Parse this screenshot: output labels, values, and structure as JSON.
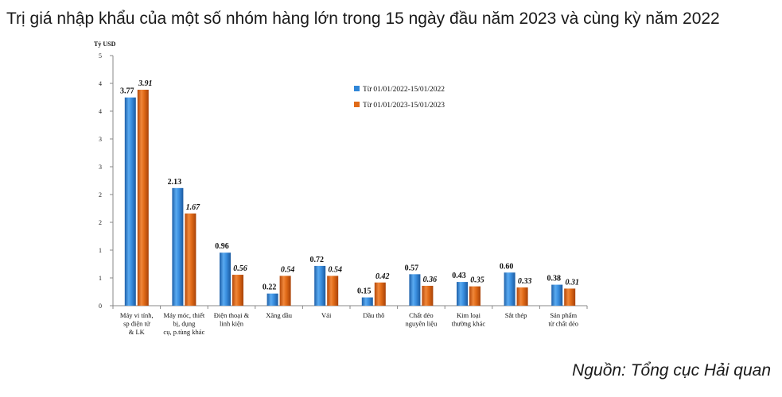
{
  "title": "Trị giá nhập khẩu của một số nhóm hàng lớn trong 15 ngày đầu năm 2023 và cùng kỳ năm 2022",
  "source": "Nguồn: Tổng cục Hải quan",
  "chart_data": {
    "type": "bar",
    "ylabel": "Tỷ USD",
    "ylim": [
      0,
      4.5
    ],
    "y_tick_labels": [
      "0",
      "1",
      "1",
      "2",
      "2",
      "3",
      "3",
      "4",
      "4",
      "5"
    ],
    "legend_position": "top-right",
    "categories": [
      [
        "Máy vi tính,",
        "sp điện tử",
        "& LK"
      ],
      [
        "Máy móc, thiết",
        "bị, dụng",
        "cụ, p.tùng khác"
      ],
      [
        "Điện thoại &",
        "linh kiện"
      ],
      [
        "Xăng dầu"
      ],
      [
        "Vải"
      ],
      [
        "Dầu thô"
      ],
      [
        "Chất dẻo",
        "nguyên liệu"
      ],
      [
        "Kim loại",
        "thường khác"
      ],
      [
        "Sắt thép"
      ],
      [
        "Sản phẩm",
        "từ chất dẻo"
      ]
    ],
    "series": [
      {
        "name": "Từ 01/01/2022-15/01/2022",
        "color": "#2f86d8",
        "values": [
          3.77,
          2.13,
          0.96,
          0.22,
          0.72,
          0.15,
          0.57,
          0.43,
          0.6,
          0.38
        ],
        "labels": [
          "3.77",
          "2.13",
          "0.96",
          "0.22",
          "0.72",
          "0.15",
          "0.57",
          "0.43",
          "0.60",
          "0.38"
        ]
      },
      {
        "name": "Từ 01/01/2023-15/01/2023",
        "color": "#e06a17",
        "values": [
          3.91,
          1.67,
          0.56,
          0.54,
          0.54,
          0.42,
          0.36,
          0.35,
          0.33,
          0.31
        ],
        "labels": [
          "3.91",
          "1.67",
          "0.56",
          "0.54",
          "0.54",
          "0.42",
          "0.36",
          "0.35",
          "0.33",
          "0.31"
        ]
      }
    ]
  }
}
